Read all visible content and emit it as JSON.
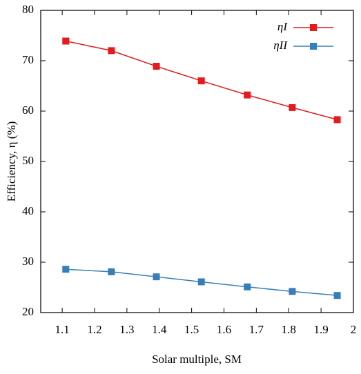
{
  "chart_data": {
    "type": "line",
    "x_label": "Solar multiple, SM",
    "y_label": "Efficiency, η (%)",
    "x": [
      1.111,
      1.252,
      1.391,
      1.53,
      1.672,
      1.811,
      1.95
    ],
    "series": [
      {
        "name": "ηI",
        "color": "#e41a1c",
        "values": [
          73.9,
          72.0,
          68.9,
          66.0,
          63.2,
          60.7,
          58.3
        ]
      },
      {
        "name": "ηII",
        "color": "#377eb8",
        "values": [
          28.6,
          28.1,
          27.1,
          26.1,
          25.1,
          24.2,
          23.4
        ]
      }
    ],
    "xlim": [
      1.0336,
      2
    ],
    "xticks": [
      1.1,
      1.2,
      1.3,
      1.4,
      1.5,
      1.6,
      1.7,
      1.8,
      1.9,
      2
    ],
    "ylim": [
      20,
      80
    ],
    "yticks": [
      20,
      30,
      40,
      50,
      60,
      70,
      80
    ],
    "grid": false,
    "legend": "top-right"
  }
}
